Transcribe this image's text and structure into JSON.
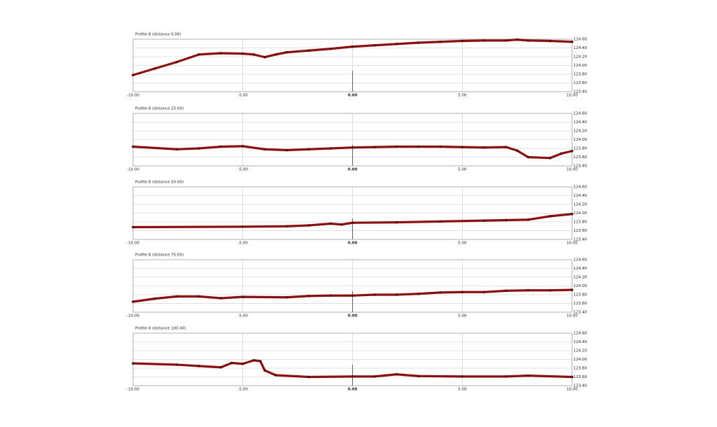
{
  "chart_data": [
    {
      "type": "line",
      "title": "Profile 8 (distance 0.00)",
      "color": "#8b1010",
      "x": [
        -10,
        -9,
        -8,
        -7,
        -6,
        -5,
        -4.5,
        -4,
        -3.5,
        -3,
        -2,
        -1,
        0,
        1,
        2,
        3,
        4,
        5,
        6,
        7,
        7.5,
        8,
        9,
        10
      ],
      "values": [
        123.78,
        123.93,
        124.08,
        124.25,
        124.28,
        124.27,
        124.25,
        124.19,
        124.25,
        124.3,
        124.34,
        124.38,
        124.43,
        124.46,
        124.49,
        124.52,
        124.54,
        124.56,
        124.57,
        124.57,
        124.59,
        124.57,
        124.56,
        124.54
      ],
      "xlim": [
        -10,
        10
      ],
      "ylim": [
        123.4,
        124.6
      ],
      "xticks": [
        {
          "value": -10,
          "label": "-10.00"
        },
        {
          "value": -5,
          "label": "-5.00"
        },
        {
          "value": 0,
          "label": "0.00"
        },
        {
          "value": 5,
          "label": "5.00"
        },
        {
          "value": 10,
          "label": "10.00"
        }
      ],
      "yticks": [
        {
          "value": 123.4,
          "label": "123.40"
        },
        {
          "value": 123.6,
          "label": "123.60"
        },
        {
          "value": 123.8,
          "label": "123.80"
        },
        {
          "value": 124.0,
          "label": "124.00"
        },
        {
          "value": 124.2,
          "label": "124.20"
        },
        {
          "value": 124.4,
          "label": "124.40"
        },
        {
          "value": 124.6,
          "label": "124.60"
        }
      ],
      "grid": true
    },
    {
      "type": "line",
      "title": "Profile 8 (distance 25.00)",
      "color": "#8b1010",
      "x": [
        -10,
        -8,
        -7,
        -6,
        -5,
        -4,
        -3,
        -2,
        -1,
        0,
        1,
        2,
        3,
        4,
        5,
        6,
        7,
        7.5,
        8,
        9,
        9.5,
        10
      ],
      "values": [
        123.84,
        123.78,
        123.8,
        123.84,
        123.85,
        123.78,
        123.76,
        123.78,
        123.8,
        123.82,
        123.83,
        123.84,
        123.84,
        123.84,
        123.83,
        123.82,
        123.83,
        123.75,
        123.6,
        123.58,
        123.68,
        123.74
      ],
      "xlim": [
        -10,
        10
      ],
      "ylim": [
        123.4,
        124.6
      ],
      "xticks": [
        {
          "value": -10,
          "label": "-10.00"
        },
        {
          "value": -5,
          "label": "-5.00"
        },
        {
          "value": 0,
          "label": "0.00"
        },
        {
          "value": 5,
          "label": "5.00"
        },
        {
          "value": 10,
          "label": "10.00"
        }
      ],
      "yticks": [
        {
          "value": 123.4,
          "label": "123.40"
        },
        {
          "value": 123.6,
          "label": "123.60"
        },
        {
          "value": 123.8,
          "label": "123.80"
        },
        {
          "value": 124.0,
          "label": "124.00"
        },
        {
          "value": 124.2,
          "label": "124.20"
        },
        {
          "value": 124.4,
          "label": "124.40"
        },
        {
          "value": 124.6,
          "label": "124.60"
        }
      ],
      "grid": true
    },
    {
      "type": "line",
      "title": "Profile 8 (distance 50.00)",
      "color": "#8b1010",
      "x": [
        -10,
        -5,
        -3,
        -2,
        -1,
        -0.5,
        0,
        2,
        4,
        6,
        7,
        8,
        9,
        10
      ],
      "values": [
        123.68,
        123.69,
        123.7,
        123.72,
        123.76,
        123.74,
        123.78,
        123.79,
        123.81,
        123.83,
        123.84,
        123.85,
        123.93,
        123.98
      ],
      "xlim": [
        -10,
        10
      ],
      "ylim": [
        123.4,
        124.6
      ],
      "xticks": [
        {
          "value": -10,
          "label": "-10.00"
        },
        {
          "value": -5,
          "label": "-5.00"
        },
        {
          "value": 0,
          "label": "0.00"
        },
        {
          "value": 5,
          "label": "5.00"
        },
        {
          "value": 10,
          "label": "10.00"
        }
      ],
      "yticks": [
        {
          "value": 123.4,
          "label": "123.40"
        },
        {
          "value": 123.6,
          "label": "123.60"
        },
        {
          "value": 123.8,
          "label": "123.80"
        },
        {
          "value": 124.0,
          "label": "124.00"
        },
        {
          "value": 124.2,
          "label": "124.20"
        },
        {
          "value": 124.4,
          "label": "124.40"
        },
        {
          "value": 124.6,
          "label": "124.60"
        }
      ],
      "grid": true
    },
    {
      "type": "line",
      "title": "Profile 8 (distance 75.00)",
      "color": "#8b1010",
      "x": [
        -10,
        -9,
        -8,
        -7,
        -6,
        -5,
        -3,
        -2,
        -1,
        0,
        1,
        2,
        3,
        4,
        5,
        6,
        7,
        8,
        9,
        10
      ],
      "values": [
        123.64,
        123.71,
        123.76,
        123.76,
        123.72,
        123.75,
        123.74,
        123.77,
        123.78,
        123.78,
        123.8,
        123.8,
        123.82,
        123.85,
        123.86,
        123.86,
        123.89,
        123.9,
        123.9,
        123.91
      ],
      "xlim": [
        -10,
        10
      ],
      "ylim": [
        123.4,
        124.6
      ],
      "xticks": [
        {
          "value": -10,
          "label": "-10.00"
        },
        {
          "value": -5,
          "label": "-5.00"
        },
        {
          "value": 0,
          "label": "0.00"
        },
        {
          "value": 5,
          "label": "5.00"
        },
        {
          "value": 10,
          "label": "10.00"
        }
      ],
      "yticks": [
        {
          "value": 123.4,
          "label": "123.40"
        },
        {
          "value": 123.6,
          "label": "123.60"
        },
        {
          "value": 123.8,
          "label": "123.80"
        },
        {
          "value": 124.0,
          "label": "124.00"
        },
        {
          "value": 124.2,
          "label": "124.20"
        },
        {
          "value": 124.4,
          "label": "124.40"
        },
        {
          "value": 124.6,
          "label": "124.60"
        }
      ],
      "grid": true
    },
    {
      "type": "line",
      "title": "Profile 8 (distance 100.00)",
      "color": "#8b1010",
      "x": [
        -10,
        -8,
        -7,
        -6,
        -5.5,
        -5,
        -4.5,
        -4.2,
        -4,
        -3.5,
        -2,
        0,
        1,
        2,
        3,
        5,
        7,
        8,
        10
      ],
      "values": [
        123.91,
        123.88,
        123.85,
        123.82,
        123.92,
        123.9,
        123.98,
        123.96,
        123.75,
        123.64,
        123.6,
        123.61,
        123.61,
        123.66,
        123.62,
        123.61,
        123.61,
        123.63,
        123.6
      ],
      "xlim": [
        -10,
        10
      ],
      "ylim": [
        123.4,
        124.6
      ],
      "xticks": [
        {
          "value": -10,
          "label": "-10.00"
        },
        {
          "value": -5,
          "label": "-5.00"
        },
        {
          "value": 0,
          "label": "0.00"
        },
        {
          "value": 5,
          "label": "5.00"
        },
        {
          "value": 10,
          "label": "10.00"
        }
      ],
      "yticks": [
        {
          "value": 123.4,
          "label": "123.40"
        },
        {
          "value": 123.6,
          "label": "123.60"
        },
        {
          "value": 123.8,
          "label": "123.80"
        },
        {
          "value": 124.0,
          "label": "124.00"
        },
        {
          "value": 124.2,
          "label": "124.20"
        },
        {
          "value": 124.4,
          "label": "124.40"
        },
        {
          "value": 124.6,
          "label": "124.60"
        }
      ],
      "grid": true
    }
  ]
}
